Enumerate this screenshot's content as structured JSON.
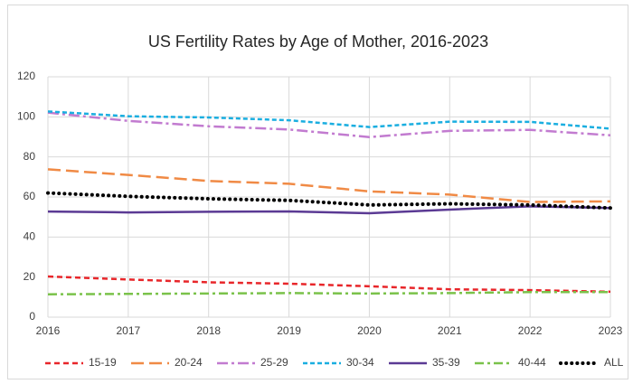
{
  "chart_data": {
    "type": "line",
    "title": "US Fertility Rates by Age of Mother, 2016-2023",
    "x": [
      2016,
      2017,
      2018,
      2019,
      2020,
      2021,
      2022,
      2023
    ],
    "xlim": [
      2016,
      2023
    ],
    "xticks": [
      2016,
      2017,
      2018,
      2019,
      2020,
      2021,
      2022,
      2023
    ],
    "ylim": [
      0,
      120
    ],
    "yticks": [
      0,
      20,
      40,
      60,
      80,
      100,
      120
    ],
    "grid": true,
    "legend": "bottom",
    "series": [
      {
        "name": "15-19",
        "color": "#e8262a",
        "values": [
          20.3,
          18.8,
          17.4,
          16.7,
          15.4,
          13.9,
          13.5,
          12.7
        ]
      },
      {
        "name": "20-24",
        "color": "#f08a45",
        "values": [
          73.8,
          71.0,
          68.0,
          66.6,
          62.8,
          61.2,
          57.5,
          57.8
        ]
      },
      {
        "name": "25-29",
        "color": "#c27bd0",
        "values": [
          102.1,
          98.0,
          95.3,
          93.7,
          89.9,
          93.0,
          93.5,
          90.8
        ]
      },
      {
        "name": "30-34",
        "color": "#1aaee0",
        "values": [
          102.7,
          100.3,
          99.7,
          98.3,
          94.9,
          97.6,
          97.5,
          94.1
        ]
      },
      {
        "name": "35-39",
        "color": "#5b3a94",
        "values": [
          52.7,
          52.3,
          52.6,
          52.8,
          51.9,
          53.7,
          55.3,
          54.5
        ]
      },
      {
        "name": "40-44",
        "color": "#7ac24a",
        "values": [
          11.4,
          11.6,
          11.8,
          12.0,
          11.8,
          12.0,
          12.5,
          12.5
        ]
      },
      {
        "name": "ALL",
        "color": "#000000",
        "values": [
          62.0,
          60.3,
          59.1,
          58.3,
          56.0,
          56.6,
          56.0,
          54.5
        ]
      }
    ]
  }
}
